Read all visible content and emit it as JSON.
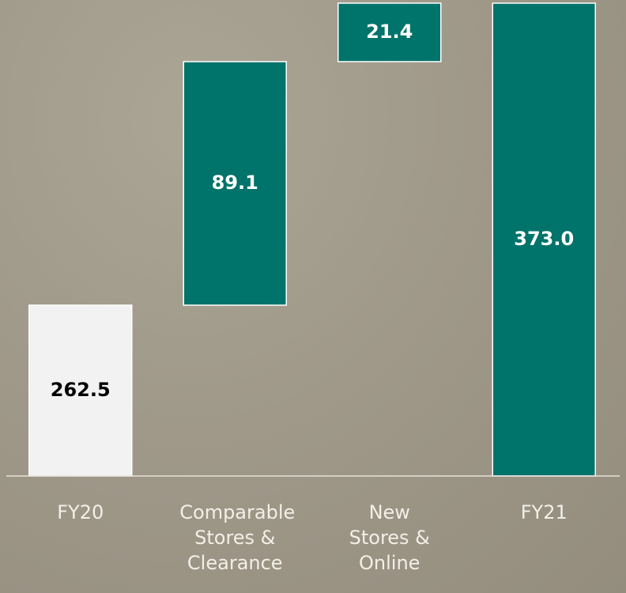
{
  "chart_data": {
    "type": "waterfall",
    "categories": [
      "FY20",
      "Comparable Stores & Clearance",
      "New Stores & Online",
      "FY21"
    ],
    "values": [
      262.5,
      89.1,
      21.4,
      373.0
    ],
    "value_labels": [
      "262.5",
      "89.1",
      "21.4",
      "373.0"
    ],
    "colors": [
      "#f2f2f2",
      "#00736a",
      "#00736a",
      "#00736a"
    ],
    "ylim": [
      200,
      373
    ]
  }
}
